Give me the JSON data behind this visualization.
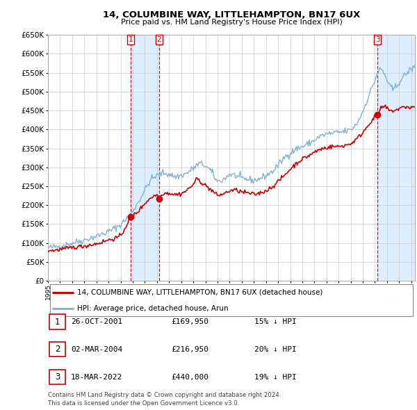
{
  "title": "14, COLUMBINE WAY, LITTLEHAMPTON, BN17 6UX",
  "subtitle": "Price paid vs. HM Land Registry's House Price Index (HPI)",
  "ylim": [
    0,
    650000
  ],
  "yticks": [
    0,
    50000,
    100000,
    150000,
    200000,
    250000,
    300000,
    350000,
    400000,
    450000,
    500000,
    550000,
    600000,
    650000
  ],
  "hpi_color": "#7fb2d8",
  "price_color": "#cc0000",
  "transaction_color": "#cc0000",
  "vline_color": "#cc0000",
  "shade_color": "#ddeeff",
  "background_color": "#ffffff",
  "grid_color": "#cccccc",
  "legend_entries": [
    "14, COLUMBINE WAY, LITTLEHAMPTON, BN17 6UX (detached house)",
    "HPI: Average price, detached house, Arun"
  ],
  "transactions": [
    {
      "label": "1",
      "date_num": 2001.82,
      "price": 169950,
      "pct": "15%",
      "date_str": "26-OCT-2001",
      "price_str": "£169,950"
    },
    {
      "label": "2",
      "date_num": 2004.17,
      "price": 216950,
      "pct": "20%",
      "date_str": "02-MAR-2004",
      "price_str": "£216,950"
    },
    {
      "label": "3",
      "date_num": 2022.21,
      "price": 440000,
      "pct": "19%",
      "date_str": "18-MAR-2022",
      "price_str": "£440,000"
    }
  ],
  "footer_lines": [
    "Contains HM Land Registry data © Crown copyright and database right 2024.",
    "This data is licensed under the Open Government Licence v3.0."
  ],
  "table_rows": [
    {
      "num": "1",
      "date": "26-OCT-2001",
      "price": "£169,950",
      "hpi": "15% ↓ HPI"
    },
    {
      "num": "2",
      "date": "02-MAR-2004",
      "price": "£216,950",
      "hpi": "20% ↓ HPI"
    },
    {
      "num": "3",
      "date": "18-MAR-2022",
      "price": "£440,000",
      "hpi": "19% ↓ HPI"
    }
  ],
  "xmin": 1995,
  "xmax": 2025.3
}
